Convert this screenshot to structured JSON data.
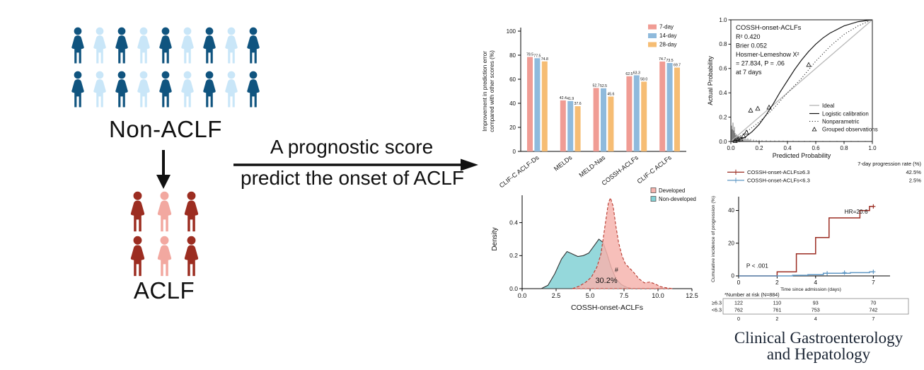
{
  "colors": {
    "person_dark_blue": "#10547f",
    "person_light_blue": "#c9e6f8",
    "person_dark_red": "#9c2d21",
    "person_pink": "#f2a8a0",
    "bar_7day": "#f09c94",
    "bar_14day": "#8fbadc",
    "bar_28day": "#f6bd74",
    "ideal_line": "#b9b9b9",
    "logistic_line": "#1a1a1a",
    "km_high": "#9b2c22",
    "km_low": "#5f97c4",
    "table_high": "#d16680",
    "table_low": "#5f8fbf",
    "developed_fill": "#f6b4ae",
    "developed_line": "#b7392e",
    "nondeveloped_fill": "#83d1d5",
    "nondeveloped_line": "#333333",
    "journal_text": "#1a2433"
  },
  "left_panel": {
    "non_aclf_label": "Non-ACLF",
    "aclf_label": "ACLF",
    "non_aclf_grid": {
      "rows": 2,
      "cols": 9,
      "pattern": [
        "person_dark_blue",
        "person_light_blue"
      ]
    },
    "aclf_grid": {
      "rows": 2,
      "cols": 3,
      "pattern": [
        "person_dark_red",
        "person_pink",
        "person_dark_red"
      ]
    }
  },
  "arrow_text": {
    "line1": "A prognostic score",
    "line2": "predict the onset of ACLF"
  },
  "journal": {
    "line1": "Clinical Gastroenterology",
    "line2": "and Hepatology"
  },
  "chart_data": [
    {
      "id": "improvement-bar",
      "type": "bar",
      "ylabel": [
        "Improvement in prediction error",
        "compared with other scores (%)"
      ],
      "ylim": [
        0,
        100
      ],
      "yticks": [
        0,
        20,
        40,
        60,
        80,
        100
      ],
      "categories": [
        "CLIF-C ACLF-Ds",
        "MELDs",
        "MELD-Nas",
        "COSSH-ACLFs",
        "CLIF-C ACLFs"
      ],
      "series": [
        {
          "name": "7-day",
          "color": "bar_7day",
          "values": [
            78.5,
            42.4,
            52.7,
            62.5,
            74.7
          ]
        },
        {
          "name": "14-day",
          "color": "bar_14day",
          "values": [
            77.5,
            41.9,
            52.5,
            63.3,
            73.5
          ]
        },
        {
          "name": "28-day",
          "color": "bar_28day",
          "values": [
            74.8,
            37.6,
            45.6,
            58.0,
            69.7
          ]
        }
      ],
      "legend_position": "top-right",
      "grid": false
    },
    {
      "id": "calibration",
      "type": "line",
      "title": "COSSH-onset-ACLFs",
      "stats": [
        "R²  0.420",
        "Brier 0.052",
        "Hosmer-Lemeshow X²",
        "= 27.834, P = .06",
        "at 7 days"
      ],
      "xlabel": "Predicted Probability",
      "ylabel": "Actual Probability",
      "xlim": [
        0,
        1
      ],
      "ylim": [
        0,
        1
      ],
      "xticks": [
        0,
        0.2,
        0.4,
        0.6,
        0.8,
        1
      ],
      "yticks": [
        0,
        0.2,
        0.4,
        0.6,
        0.8,
        1
      ],
      "legend": [
        "Ideal",
        "Logistic calibration",
        "Nonparametric",
        "Grouped observations"
      ],
      "ideal": [
        [
          0,
          0
        ],
        [
          1,
          1
        ]
      ],
      "logistic_calibration": [
        [
          0,
          0
        ],
        [
          0.05,
          0.01
        ],
        [
          0.1,
          0.035
        ],
        [
          0.15,
          0.08
        ],
        [
          0.2,
          0.14
        ],
        [
          0.25,
          0.22
        ],
        [
          0.3,
          0.31
        ],
        [
          0.35,
          0.41
        ],
        [
          0.4,
          0.5
        ],
        [
          0.45,
          0.59
        ],
        [
          0.5,
          0.67
        ],
        [
          0.55,
          0.74
        ],
        [
          0.6,
          0.8
        ],
        [
          0.65,
          0.85
        ],
        [
          0.7,
          0.89
        ],
        [
          0.8,
          0.95
        ],
        [
          0.9,
          0.985
        ],
        [
          1,
          1
        ]
      ],
      "nonparametric": [
        [
          0.02,
          0.01
        ],
        [
          0.1,
          0.07
        ],
        [
          0.2,
          0.16
        ],
        [
          0.3,
          0.27
        ],
        [
          0.4,
          0.4
        ],
        [
          0.5,
          0.52
        ],
        [
          0.6,
          0.66
        ],
        [
          0.7,
          0.78
        ],
        [
          0.8,
          0.88
        ],
        [
          0.9,
          0.95
        ],
        [
          0.98,
          0.99
        ]
      ],
      "grouped_observations": [
        [
          0.03,
          0.005
        ],
        [
          0.05,
          0.012
        ],
        [
          0.07,
          0.02
        ],
        [
          0.09,
          0.045
        ],
        [
          0.11,
          0.075
        ],
        [
          0.14,
          0.255
        ],
        [
          0.19,
          0.27
        ],
        [
          0.27,
          0.28
        ],
        [
          0.55,
          0.63
        ]
      ],
      "rug_spikes": [
        [
          0.005,
          0.13
        ],
        [
          0.01,
          0.1
        ],
        [
          0.015,
          0.155
        ],
        [
          0.02,
          0.09
        ],
        [
          0.025,
          0.12
        ],
        [
          0.03,
          0.07
        ],
        [
          0.035,
          0.05
        ],
        [
          0.04,
          0.06
        ],
        [
          0.045,
          0.04
        ],
        [
          0.05,
          0.05
        ],
        [
          0.055,
          0.035
        ],
        [
          0.06,
          0.045
        ],
        [
          0.07,
          0.03
        ],
        [
          0.08,
          0.035
        ],
        [
          0.09,
          0.025
        ],
        [
          0.1,
          0.03
        ],
        [
          0.11,
          0.02
        ],
        [
          0.12,
          0.025
        ],
        [
          0.13,
          0.015
        ],
        [
          0.14,
          0.02
        ],
        [
          0.16,
          0.015
        ],
        [
          0.18,
          0.012
        ],
        [
          0.2,
          0.012
        ],
        [
          0.22,
          0.01
        ],
        [
          0.25,
          0.01
        ],
        [
          0.28,
          0.008
        ],
        [
          0.31,
          0.008
        ],
        [
          0.34,
          0.008
        ],
        [
          0.37,
          0.007
        ],
        [
          0.4,
          0.007
        ],
        [
          0.44,
          0.007
        ],
        [
          0.48,
          0.006
        ],
        [
          0.52,
          0.006
        ],
        [
          0.56,
          0.006
        ],
        [
          0.6,
          0.006
        ],
        [
          0.65,
          0.005
        ],
        [
          0.7,
          0.005
        ],
        [
          0.75,
          0.005
        ],
        [
          0.8,
          0.005
        ],
        [
          0.85,
          0.005
        ],
        [
          0.9,
          0.005
        ],
        [
          0.95,
          0.005
        ]
      ]
    },
    {
      "id": "density",
      "type": "area",
      "xlabel": "COSSH-onset-ACLFs",
      "ylabel": "Density",
      "xlim": [
        0,
        12.5
      ],
      "ylim": [
        0,
        0.6
      ],
      "xticks": [
        0,
        2.5,
        5,
        7.5,
        10,
        12.5
      ],
      "yticks": [
        0,
        0.2,
        0.4
      ],
      "series": [
        {
          "name": "Developed",
          "fill": "developed_fill",
          "line": "developed_line",
          "dashed": true,
          "points": [
            [
              3.7,
              0
            ],
            [
              4.2,
              0.015
            ],
            [
              4.7,
              0.04
            ],
            [
              5.1,
              0.07
            ],
            [
              5.5,
              0.13
            ],
            [
              5.8,
              0.21
            ],
            [
              6.1,
              0.38
            ],
            [
              6.35,
              0.52
            ],
            [
              6.5,
              0.55
            ],
            [
              6.7,
              0.5
            ],
            [
              6.9,
              0.38
            ],
            [
              7.1,
              0.28
            ],
            [
              7.35,
              0.2
            ],
            [
              7.6,
              0.15
            ],
            [
              7.9,
              0.125
            ],
            [
              8.2,
              0.1
            ],
            [
              8.6,
              0.06
            ],
            [
              9,
              0.035
            ],
            [
              9.4,
              0.04
            ],
            [
              9.8,
              0.028
            ],
            [
              10.2,
              0.012
            ],
            [
              10.7,
              0.004
            ],
            [
              11.1,
              0
            ]
          ]
        },
        {
          "name": "Non-developed",
          "fill": "nondeveloped_fill",
          "line": "nondeveloped_line",
          "dashed": false,
          "points": [
            [
              1.4,
              0
            ],
            [
              1.9,
              0.02
            ],
            [
              2.4,
              0.09
            ],
            [
              2.9,
              0.18
            ],
            [
              3.3,
              0.225
            ],
            [
              3.7,
              0.21
            ],
            [
              4.1,
              0.195
            ],
            [
              4.5,
              0.2
            ],
            [
              4.9,
              0.215
            ],
            [
              5.3,
              0.26
            ],
            [
              5.65,
              0.3
            ],
            [
              5.95,
              0.28
            ],
            [
              6.25,
              0.21
            ],
            [
              6.55,
              0.13
            ],
            [
              6.9,
              0.06
            ],
            [
              7.3,
              0.025
            ],
            [
              7.7,
              0.008
            ],
            [
              8.1,
              0
            ]
          ]
        }
      ],
      "annotations": [
        {
          "text": "30.2%",
          "x": 6.2,
          "y": 0.035,
          "size": 11
        },
        {
          "text": "#",
          "x": 6.95,
          "y": 0.1,
          "size": 9
        }
      ]
    },
    {
      "id": "cumulative-incidence",
      "type": "line",
      "legend_header": "7-day progression rate (%)",
      "groups": [
        {
          "label": "COSSH-onset-ACLFs≥6.3",
          "rate": "42.5%",
          "color": "km_high",
          "steps": [
            [
              0,
              0
            ],
            [
              2,
              0
            ],
            [
              2,
              2.5
            ],
            [
              3,
              2.5
            ],
            [
              3,
              13.5
            ],
            [
              4,
              13.5
            ],
            [
              4,
              23.5
            ],
            [
              4.7,
              23.5
            ],
            [
              4.7,
              35.5
            ],
            [
              6.3,
              35.5
            ],
            [
              6.3,
              40
            ],
            [
              6.8,
              40
            ],
            [
              6.8,
              42.5
            ],
            [
              7,
              42.5
            ]
          ],
          "censors": [
            [
              7,
              42.5
            ]
          ]
        },
        {
          "label": "COSSH-onset-ACLFs<6.3",
          "rate": "2.5%",
          "color": "km_low",
          "steps": [
            [
              0,
              0
            ],
            [
              2.8,
              0
            ],
            [
              2.8,
              0.4
            ],
            [
              3.6,
              0.4
            ],
            [
              3.6,
              0.8
            ],
            [
              4.4,
              0.8
            ],
            [
              4.4,
              1.6
            ],
            [
              5.8,
              1.6
            ],
            [
              5.8,
              2
            ],
            [
              6.8,
              2
            ],
            [
              6.8,
              2.5
            ],
            [
              7,
              2.5
            ]
          ],
          "censors": [
            [
              4.6,
              1.6
            ],
            [
              5.5,
              2
            ],
            [
              7,
              2.5
            ]
          ]
        }
      ],
      "ylabel": "Cumulative incidence of progression (%)",
      "xlabel": "Time since admission (days)",
      "xlim": [
        0,
        7.5
      ],
      "ylim": [
        0,
        45
      ],
      "xticks": [
        0,
        2,
        4,
        7
      ],
      "yticks": [
        0,
        20,
        40
      ],
      "annotations": [
        {
          "text": "HR=20.6",
          "x": 5.5,
          "y": 38
        },
        {
          "text": "P < .001",
          "x": 0.4,
          "y": 5
        }
      ],
      "risk_table": {
        "title": "*Number at risk (N=884)",
        "columns": [
          0,
          2,
          4,
          7
        ],
        "rows": [
          {
            "label": "≥6.3",
            "color": "table_high",
            "values": [
              "122",
              "110",
              "93",
              "70"
            ]
          },
          {
            "label": "<6.3",
            "color": "table_low",
            "values": [
              "762",
              "761",
              "753",
              "742"
            ]
          }
        ],
        "axis_row": [
          "0",
          "2",
          "4",
          "7"
        ]
      }
    }
  ]
}
